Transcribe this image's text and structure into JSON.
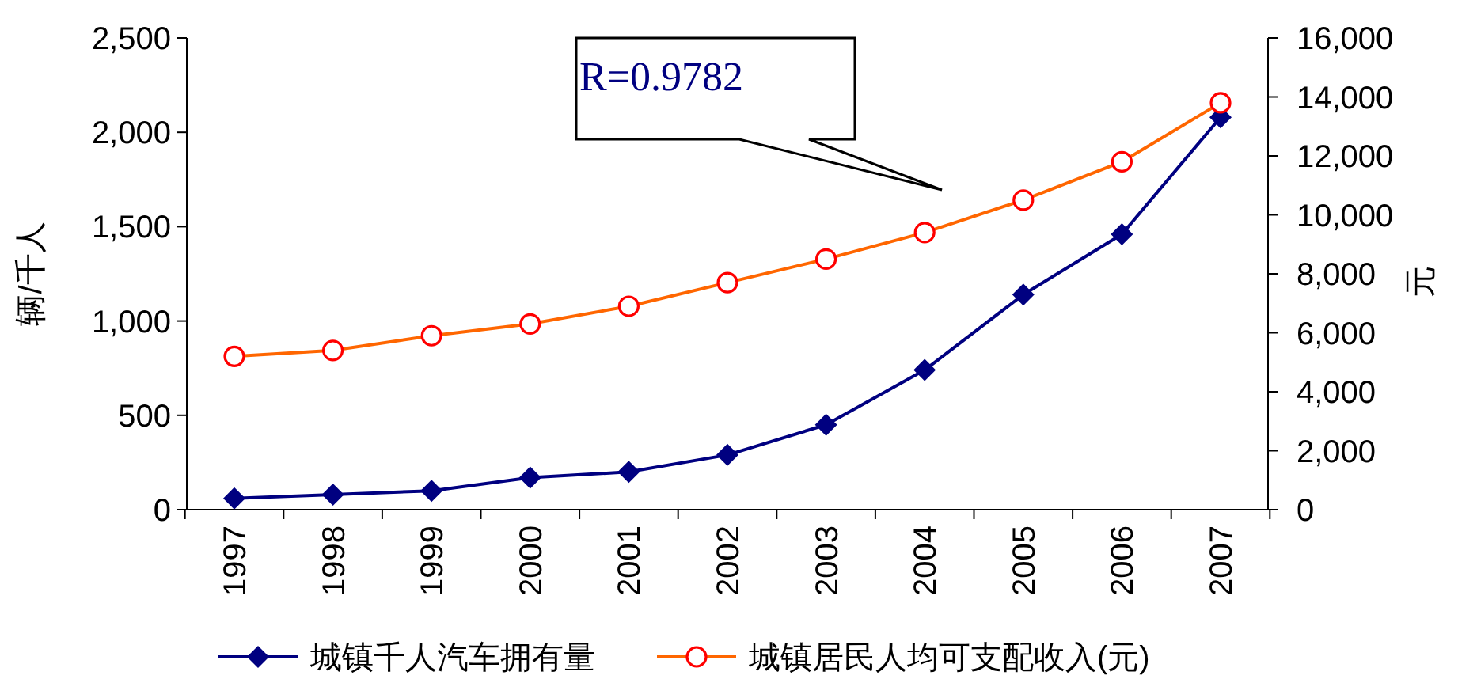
{
  "chart_data": {
    "type": "line",
    "categories": [
      "1997",
      "1998",
      "1999",
      "2000",
      "2001",
      "2002",
      "2003",
      "2004",
      "2005",
      "2006",
      "2007"
    ],
    "ylabel": "辆/千人",
    "y2label": "元",
    "series": [
      {
        "name": "城镇千人汽车拥有量",
        "color": "#000080",
        "marker": "diamond",
        "values": [
          60,
          80,
          100,
          170,
          200,
          290,
          450,
          740,
          1140,
          1460,
          2080
        ]
      },
      {
        "name": "城镇居民人均可支配收入(元)",
        "color": "#ff6600",
        "marker": "circle",
        "axis": "y2",
        "values": [
          5200,
          5400,
          5900,
          6300,
          6900,
          7700,
          8500,
          9400,
          10500,
          11800,
          13800
        ]
      }
    ],
    "ylim": [
      0,
      2500
    ],
    "yticks": [
      0,
      {
        "value": 500,
        "label": "500"
      },
      {
        "value": 1000,
        "label": "1,000"
      },
      {
        "value": 1500,
        "label": "1,500"
      },
      {
        "value": 2000,
        "label": "2,000"
      },
      {
        "value": 2500,
        "label": "2,500"
      }
    ],
    "y2lim": [
      0,
      16000
    ],
    "y2ticks": [
      0,
      {
        "value": 2000,
        "label": "2,000"
      },
      {
        "value": 4000,
        "label": "4,000"
      },
      {
        "value": 6000,
        "label": "6,000"
      },
      {
        "value": 8000,
        "label": "8,000"
      },
      {
        "value": 10000,
        "label": "10,000"
      },
      {
        "value": 12000,
        "label": "12,000"
      },
      {
        "value": 14000,
        "label": "14,000"
      },
      {
        "value": 16000,
        "label": "16,000"
      }
    ],
    "annotations": [
      "R=0.9782"
    ],
    "legend": "bottom",
    "grid": false
  }
}
